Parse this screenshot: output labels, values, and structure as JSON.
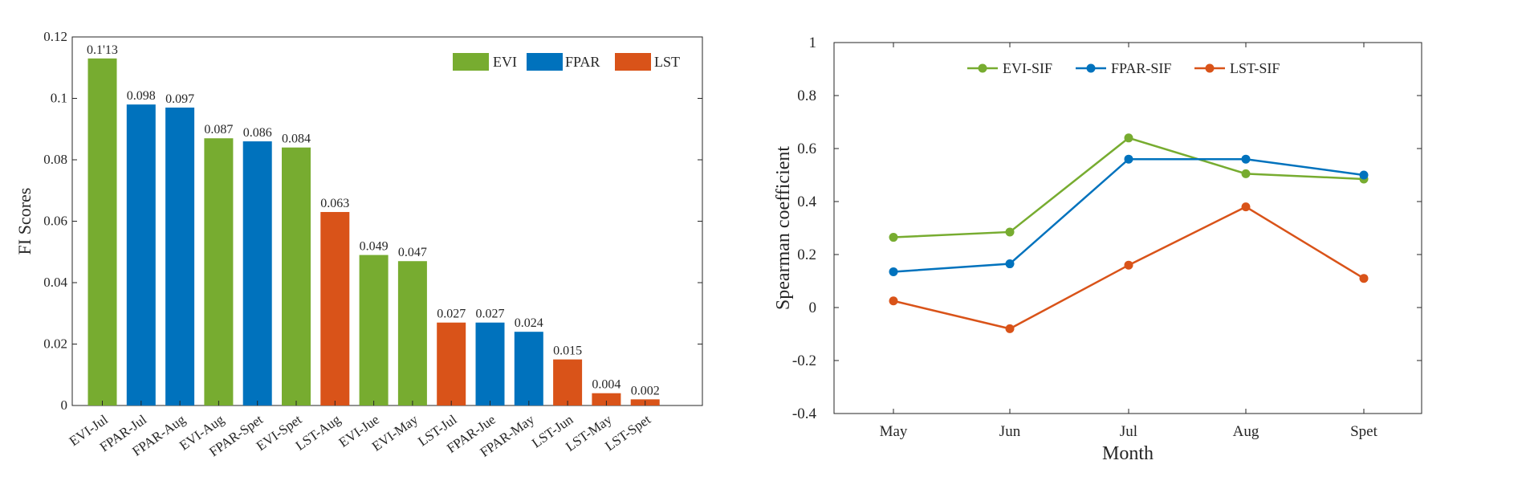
{
  "chart_data": [
    {
      "type": "bar",
      "categories": [
        "EVI-Jul",
        "FPAR-Jul",
        "FPAR-Aug",
        "EVI-Aug",
        "FPAR-Spet",
        "EVI-Spet",
        "LST-Aug",
        "EVI-Jue",
        "EVI-May",
        "LST-Jul",
        "FPAR-Jue",
        "FPAR-May",
        "LST-Jun",
        "LST-May",
        "LST-Spet"
      ],
      "values": [
        0.113,
        0.098,
        0.097,
        0.087,
        0.086,
        0.084,
        0.063,
        0.049,
        0.047,
        0.027,
        0.027,
        0.024,
        0.015,
        0.004,
        0.002
      ],
      "value_labels": [
        "0.1'13",
        "0.098",
        "0.097",
        "0.087",
        "0.086",
        "0.084",
        "0.063",
        "0.049",
        "0.047",
        "0.027",
        "0.027",
        "0.024",
        "0.015",
        "0.004",
        "0.002"
      ],
      "groups": [
        "EVI",
        "FPAR",
        "FPAR",
        "EVI",
        "FPAR",
        "EVI",
        "LST",
        "EVI",
        "EVI",
        "LST",
        "FPAR",
        "FPAR",
        "LST",
        "LST",
        "LST"
      ],
      "legend": [
        {
          "name": "EVI",
          "color": "#77ac30"
        },
        {
          "name": "FPAR",
          "color": "#0072bd"
        },
        {
          "name": "LST",
          "color": "#d95319"
        }
      ],
      "title": "",
      "xlabel": "",
      "ylabel": "FI Scores",
      "ylim": [
        0,
        0.12
      ],
      "yticks": [
        0,
        0.02,
        0.04,
        0.06,
        0.08,
        0.1,
        0.12
      ],
      "ytick_labels": [
        "0",
        "0.02",
        "0.04",
        "0.06",
        "0.08",
        "0.1",
        "0.12"
      ],
      "legend_position": "top-right",
      "grid": false
    },
    {
      "type": "line",
      "categories": [
        "May",
        "Jun",
        "Jul",
        "Aug",
        "Spet"
      ],
      "series": [
        {
          "name": "EVI-SIF",
          "color": "#77ac30",
          "values": [
            0.265,
            0.285,
            0.64,
            0.505,
            0.485
          ]
        },
        {
          "name": "FPAR-SIF",
          "color": "#0072bd",
          "values": [
            0.135,
            0.165,
            0.56,
            0.56,
            0.5
          ]
        },
        {
          "name": "LST-SIF",
          "color": "#d95319",
          "values": [
            0.025,
            -0.08,
            0.16,
            0.38,
            0.11
          ]
        }
      ],
      "title": "",
      "xlabel": "Month",
      "ylabel": "Spearman coefficient",
      "ylim": [
        -0.4,
        1
      ],
      "yticks": [
        -0.4,
        -0.2,
        0,
        0.2,
        0.4,
        0.6,
        0.8,
        1
      ],
      "ytick_labels": [
        "-0.4",
        "-0.2",
        "0",
        "0.2",
        "0.4",
        "0.6",
        "0.8",
        "1"
      ],
      "legend_position": "top-center",
      "grid": false
    }
  ]
}
